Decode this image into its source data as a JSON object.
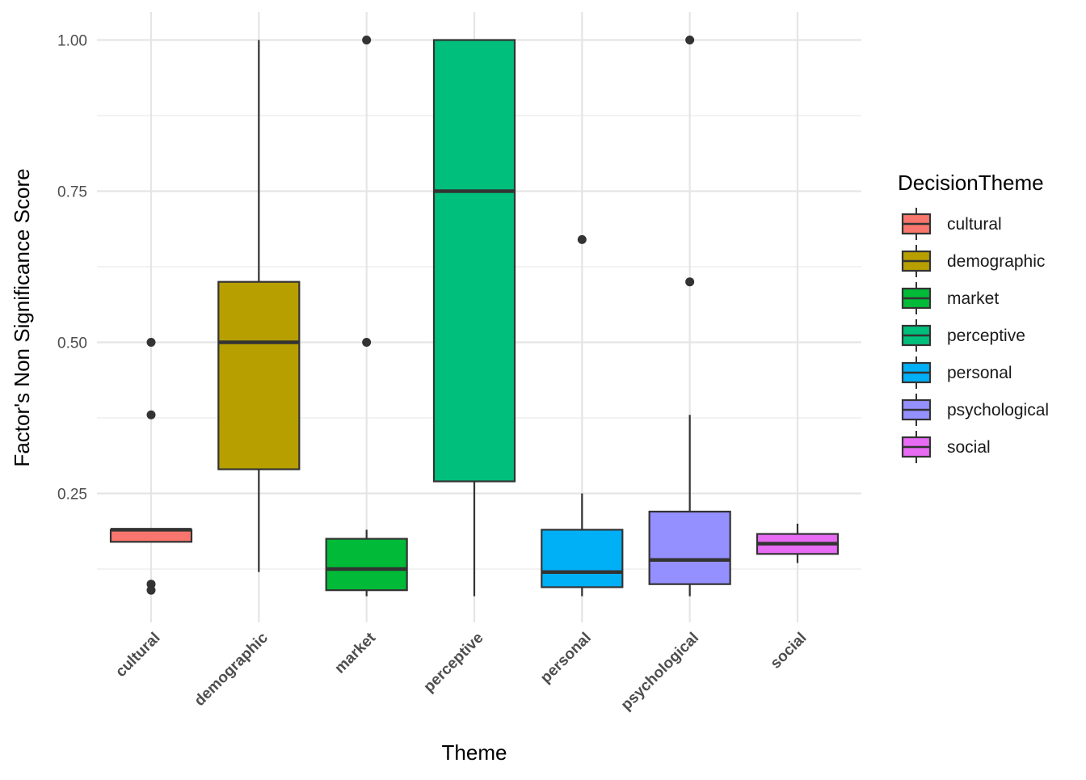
{
  "chart_data": {
    "type": "boxplot",
    "xlabel": "Theme",
    "ylabel": "Factor's Non Significance Score",
    "ylim": [
      0.05,
      1.03
    ],
    "y_ticks": [
      0.25,
      0.5,
      0.75,
      1.0
    ],
    "y_tick_labels": [
      "0.25",
      "0.50",
      "0.75",
      "1.00"
    ],
    "grid": true,
    "legend": {
      "title": "DecisionTheme",
      "position": "right"
    },
    "categories": [
      "cultural",
      "demographic",
      "market",
      "perceptive",
      "personal",
      "psychological",
      "social"
    ],
    "series": [
      {
        "name": "cultural",
        "color": "#F8766D",
        "min": 0.17,
        "q1": 0.17,
        "median": 0.19,
        "q3": 0.19,
        "max": 0.19,
        "outliers": [
          0.5,
          0.38,
          0.1,
          0.09
        ]
      },
      {
        "name": "demographic",
        "color": "#B79F00",
        "min": 0.12,
        "q1": 0.29,
        "median": 0.5,
        "q3": 0.6,
        "max": 1.0,
        "outliers": []
      },
      {
        "name": "market",
        "color": "#00BA38",
        "min": 0.08,
        "q1": 0.09,
        "median": 0.125,
        "q3": 0.175,
        "max": 0.19,
        "outliers": [
          1.0,
          0.5
        ]
      },
      {
        "name": "perceptive",
        "color": "#00BF7D",
        "min": 0.08,
        "q1": 0.27,
        "median": 0.75,
        "q3": 1.0,
        "max": 1.0,
        "outliers": []
      },
      {
        "name": "personal",
        "color": "#00B0F6",
        "min": 0.08,
        "q1": 0.095,
        "median": 0.12,
        "q3": 0.19,
        "max": 0.25,
        "outliers": [
          0.67
        ]
      },
      {
        "name": "psychological",
        "color": "#9590FF",
        "min": 0.08,
        "q1": 0.1,
        "median": 0.14,
        "q3": 0.22,
        "max": 0.38,
        "outliers": [
          1.0,
          0.6
        ]
      },
      {
        "name": "social",
        "color": "#E76BF3",
        "min": 0.135,
        "q1": 0.15,
        "median": 0.167,
        "q3": 0.183,
        "max": 0.2,
        "outliers": []
      }
    ]
  }
}
